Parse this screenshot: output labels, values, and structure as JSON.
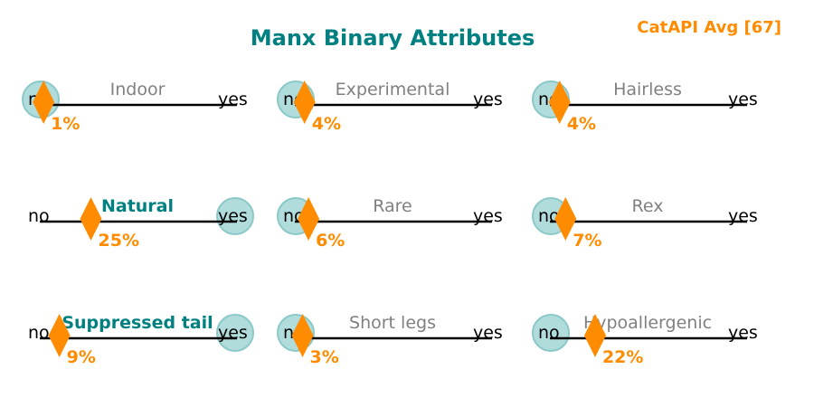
{
  "chart_data": {
    "type": "binary-attribute-sliders",
    "title": "Manx Binary Attributes",
    "badge": "CatAPI Avg [67]",
    "scale": {
      "min": 0,
      "max": 100,
      "low_label": "no",
      "high_label": "yes"
    },
    "attributes": [
      {
        "name": "Indoor",
        "value": 1,
        "label": "1%",
        "breed_has": false
      },
      {
        "name": "Experimental",
        "value": 4,
        "label": "4%",
        "breed_has": false
      },
      {
        "name": "Hairless",
        "value": 4,
        "label": "4%",
        "breed_has": false
      },
      {
        "name": "Natural",
        "value": 25,
        "label": "25%",
        "breed_has": true
      },
      {
        "name": "Rare",
        "value": 6,
        "label": "6%",
        "breed_has": false
      },
      {
        "name": "Rex",
        "value": 7,
        "label": "7%",
        "breed_has": false
      },
      {
        "name": "Suppressed tail",
        "value": 9,
        "label": "9%",
        "breed_has": true
      },
      {
        "name": "Short legs",
        "value": 3,
        "label": "3%",
        "breed_has": false
      },
      {
        "name": "Hypoallergenic",
        "value": 22,
        "label": "22%",
        "breed_has": false
      }
    ]
  },
  "colors": {
    "title": "#008080",
    "badge": "#ff8c00",
    "marker": "#ff8c00",
    "value_label": "#ff8c00",
    "active_name": "#008080",
    "inactive_name": "#808080",
    "circle_fill": "#b0dcdc",
    "circle_stroke": "#8cc8c8",
    "line": "#000000",
    "end_label": "#000000"
  }
}
